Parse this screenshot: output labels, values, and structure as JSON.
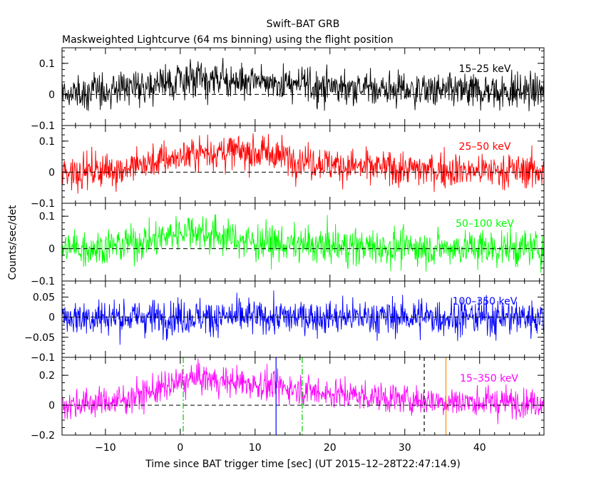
{
  "chart_data": {
    "type": "line",
    "title": "Swift–BAT GRB",
    "subtitle": "Maskweighted Lightcurve (64 ms binning) using the flight position",
    "xlabel": "Time since BAT trigger time [sec] (UT 2015–12–28T22:47:14.9)",
    "ylabel": "Counts/sec/det",
    "xlim": [
      -15.8,
      48.6
    ],
    "x_ticks": [
      -10,
      0,
      10,
      20,
      30,
      40
    ],
    "x_tick_labels": [
      "−10",
      "0",
      "10",
      "20",
      "30",
      "40"
    ],
    "x_minor_step": 2,
    "panels": [
      {
        "name": "15–25 keV",
        "color": "#000000",
        "ylim": [
          -0.1,
          0.15
        ],
        "y_ticks": [
          -0.1,
          0,
          0.1
        ],
        "y_tick_labels": [
          "−0.1",
          "0",
          "0.1"
        ],
        "y_minor_step": 0.02,
        "envelope": {
          "x": [
            -16,
            -8,
            -2,
            0,
            5,
            12,
            16,
            25,
            35,
            48.6
          ],
          "y": [
            0.0,
            0.02,
            0.04,
            0.045,
            0.045,
            0.04,
            0.03,
            0.02,
            0.01,
            0.01
          ]
        },
        "noise_sd": 0.028
      },
      {
        "name": "25–50 keV",
        "color": "#ff0000",
        "ylim": [
          -0.1,
          0.15
        ],
        "y_ticks": [
          -0.1,
          0,
          0.1
        ],
        "y_tick_labels": [
          "−0.1",
          "0",
          "0.1"
        ],
        "y_minor_step": 0.02,
        "envelope": {
          "x": [
            -16,
            -8,
            -2,
            3,
            8,
            12,
            16,
            22,
            30,
            40,
            48.6
          ],
          "y": [
            0.0,
            0.01,
            0.04,
            0.065,
            0.065,
            0.06,
            0.04,
            0.02,
            0.01,
            0.005,
            0.005
          ]
        },
        "noise_sd": 0.028
      },
      {
        "name": "50–100 keV",
        "color": "#00ff00",
        "ylim": [
          -0.1,
          0.14
        ],
        "y_ticks": [
          -0.1,
          0,
          0.1
        ],
        "y_tick_labels": [
          "−0.1",
          "0",
          "0.1"
        ],
        "y_minor_step": 0.02,
        "envelope": {
          "x": [
            -16,
            -10,
            -3,
            1,
            5,
            10,
            16,
            25,
            48.6
          ],
          "y": [
            0.0,
            0.005,
            0.03,
            0.06,
            0.04,
            0.02,
            0.01,
            0.005,
            0.0
          ]
        },
        "noise_sd": 0.028
      },
      {
        "name": "100–350 keV",
        "color": "#0000ff",
        "ylim": [
          -0.1,
          0.09
        ],
        "y_ticks": [
          -0.1,
          -0.05,
          0,
          0.05
        ],
        "y_tick_labels": [
          "−0.1",
          "−0.05",
          "0",
          "0.05"
        ],
        "y_minor_step": 0.01,
        "envelope": {
          "x": [
            -16,
            48.6
          ],
          "y": [
            0.0,
            0.0
          ]
        },
        "noise_sd": 0.022
      },
      {
        "name": "15–350 keV",
        "color": "#ff00ff",
        "ylim": [
          -0.2,
          0.32
        ],
        "y_ticks": [
          -0.2,
          0,
          0.2
        ],
        "y_tick_labels": [
          "−0.2",
          "0",
          "0.2"
        ],
        "y_minor_step": 0.05,
        "envelope": {
          "x": [
            -16,
            -8,
            -2,
            2,
            8,
            14,
            20,
            30,
            40,
            48.6
          ],
          "y": [
            0.0,
            0.03,
            0.12,
            0.18,
            0.15,
            0.12,
            0.08,
            0.04,
            0.02,
            0.02
          ]
        },
        "noise_sd": 0.05
      }
    ],
    "markers": [
      {
        "x": 0.4,
        "color": "#00cc00",
        "style": "dash-dot",
        "panel": 4
      },
      {
        "x": 16.3,
        "color": "#00cc00",
        "style": "dash-dot",
        "panel": 4
      },
      {
        "x": 12.8,
        "color": "#0000ff",
        "style": "solid",
        "panel": 4
      },
      {
        "x": 32.6,
        "color": "#000000",
        "style": "dashed",
        "panel": 4
      },
      {
        "x": 35.5,
        "color": "#ff8c00",
        "style": "solid",
        "panel": 4
      }
    ]
  }
}
